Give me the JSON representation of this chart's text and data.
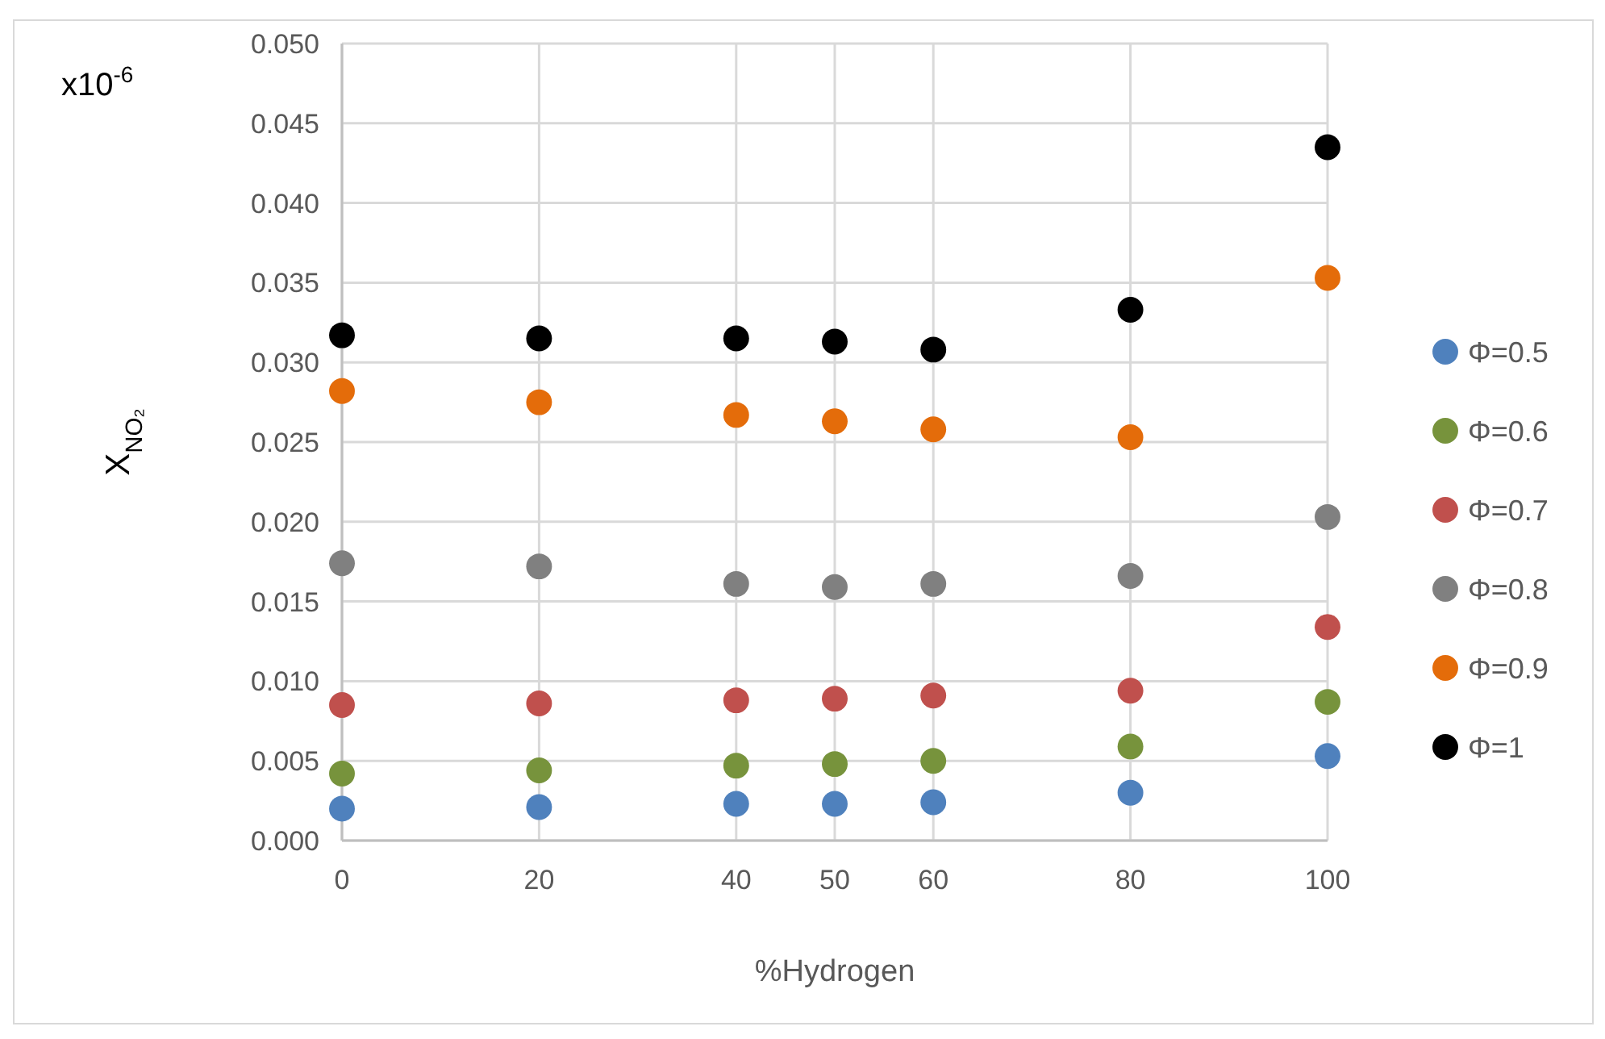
{
  "chart_data": {
    "type": "scatter",
    "xlabel": "%Hydrogen",
    "ylabel": "X$_{NO₂}$",
    "annotations": [
      "x10$^{-6}$"
    ],
    "x": [
      0,
      20,
      40,
      50,
      60,
      80,
      100
    ],
    "xlim": [
      0,
      100
    ],
    "xticks": [
      0,
      20,
      40,
      50,
      60,
      80,
      100
    ],
    "ylim": [
      0,
      0.05
    ],
    "yticks": [
      {
        "value": 0,
        "label": "0.000"
      },
      {
        "value": 0.005,
        "label": "0.005"
      },
      {
        "value": 0.01,
        "label": "0.010"
      },
      {
        "value": 0.015,
        "label": "0.015"
      },
      {
        "value": 0.02,
        "label": "0.020"
      },
      {
        "value": 0.025,
        "label": "0.025"
      },
      {
        "value": 0.03,
        "label": "0.030"
      },
      {
        "value": 0.035,
        "label": "0.035"
      },
      {
        "value": 0.04,
        "label": "0.040"
      },
      {
        "value": 0.045,
        "label": "0.045"
      },
      {
        "value": 0.05,
        "label": "0.050"
      }
    ],
    "grid": true,
    "legend": "right",
    "marker": "circle",
    "series": [
      {
        "name": "Φ=0.5",
        "color": "#4f81bd",
        "values": [
          0.002,
          0.0021,
          0.0023,
          0.0023,
          0.0024,
          0.003,
          0.0053
        ]
      },
      {
        "name": "Φ=0.6",
        "color": "#77933c",
        "values": [
          0.0042,
          0.0044,
          0.0047,
          0.0048,
          0.005,
          0.0059,
          0.0087
        ]
      },
      {
        "name": "Φ=0.7",
        "color": "#c0504d",
        "values": [
          0.0085,
          0.0086,
          0.0088,
          0.0089,
          0.0091,
          0.0094,
          0.0134
        ]
      },
      {
        "name": "Φ=0.8",
        "color": "#808080",
        "values": [
          0.0174,
          0.0172,
          0.0161,
          0.0159,
          0.0161,
          0.0166,
          0.0203
        ]
      },
      {
        "name": "Φ=0.9",
        "color": "#e46c0a",
        "values": [
          0.0282,
          0.0275,
          0.0267,
          0.0263,
          0.0258,
          0.0253,
          0.0353
        ]
      },
      {
        "name": "Φ=1",
        "color": "#000000",
        "values": [
          0.0317,
          0.0315,
          0.0315,
          0.0313,
          0.0308,
          0.0333,
          0.0435
        ]
      }
    ]
  }
}
